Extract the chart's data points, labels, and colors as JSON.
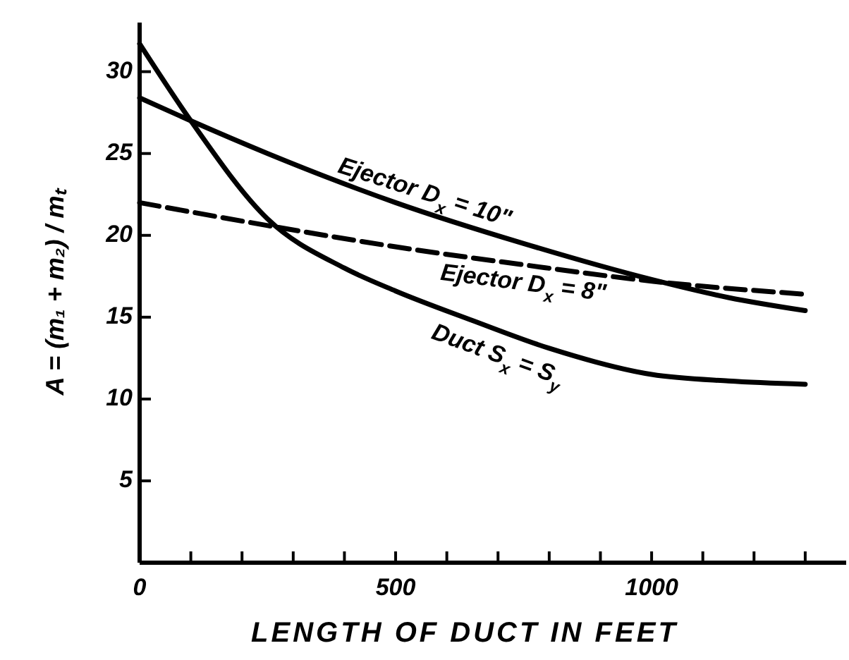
{
  "chart_data": {
    "type": "line",
    "xlabel": "LENGTH OF DUCT IN FEET",
    "ylabel": "A = (m₁ + m₂) / mₜ",
    "xlim": [
      0,
      1380
    ],
    "ylim": [
      0,
      33
    ],
    "xticks": [
      0,
      {
        "value": 100,
        "label": null
      },
      {
        "value": 200,
        "label": null
      },
      {
        "value": 300,
        "label": null
      },
      {
        "value": 400,
        "label": null
      },
      500,
      {
        "value": 600,
        "label": null
      },
      {
        "value": 700,
        "label": null
      },
      {
        "value": 800,
        "label": null
      },
      {
        "value": 900,
        "label": null
      },
      1000,
      {
        "value": 1100,
        "label": null
      },
      {
        "value": 1200,
        "label": null
      },
      {
        "value": 1300,
        "label": null
      }
    ],
    "yticks": [
      5,
      10,
      15,
      20,
      25,
      30
    ],
    "grid": false,
    "series": [
      {
        "name": "Ejector D$_{x}$ = 10\"",
        "color": "#000000",
        "line_style": "solid",
        "x": [
          0,
          100,
          250,
          500,
          750,
          1000,
          1150,
          1300
        ],
        "values": [
          28.4,
          27,
          25,
          22,
          19.5,
          17.3,
          16.2,
          15.4
        ]
      },
      {
        "name": "Ejector D$_{x}$ = 8\"",
        "color": "#000000",
        "line_style": "dashed",
        "x": [
          0,
          250,
          500,
          750,
          1000,
          1300
        ],
        "values": [
          22,
          20.6,
          19.3,
          18.2,
          17.2,
          16.4
        ]
      },
      {
        "name": "Duct S$_{x}$ = S$_{y}$",
        "color": "#000000",
        "line_style": "solid",
        "x": [
          0,
          100,
          250,
          400,
          500,
          650,
          800,
          1000,
          1150,
          1300
        ],
        "values": [
          31.7,
          27,
          21,
          18,
          16.6,
          14.8,
          13.1,
          11.5,
          11.1,
          10.9
        ]
      }
    ]
  }
}
